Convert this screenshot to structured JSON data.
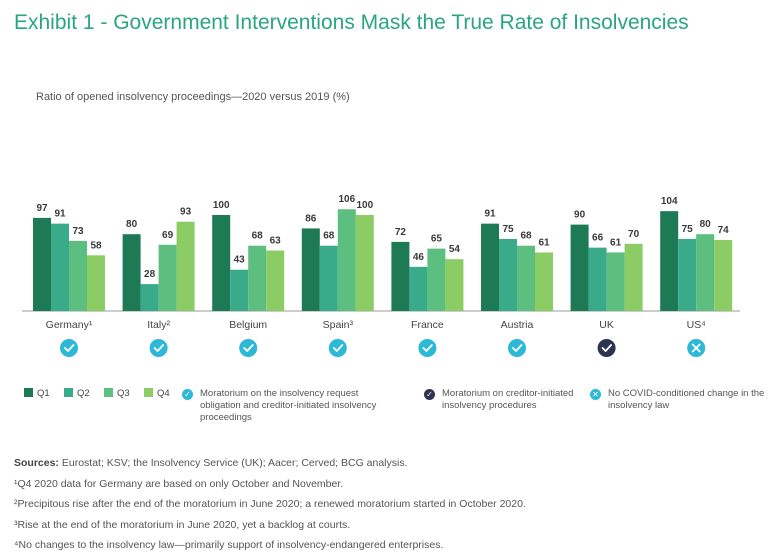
{
  "title": "Exhibit 1 - Government Interventions Mask the True Rate of Insolvencies",
  "subtitle": "Ratio of opened insolvency proceedings—2020 versus 2019 (%)",
  "colors": {
    "Q1": "#1e7a55",
    "Q2": "#3aab8a",
    "Q3": "#5cbf80",
    "Q4": "#8ccc64",
    "icon_light": "#2cb8d6",
    "icon_dark": "#2d3350",
    "title": "#2aa67c"
  },
  "chart_data": {
    "type": "bar",
    "title": "Ratio of opened insolvency proceedings—2020 versus 2019 (%)",
    "categories": [
      "Germany¹",
      "Italy²",
      "Belgium",
      "Spain³",
      "France",
      "Austria",
      "UK",
      "US⁴"
    ],
    "series": [
      {
        "name": "Q1",
        "values": [
          97,
          80,
          100,
          86,
          72,
          91,
          90,
          104
        ]
      },
      {
        "name": "Q2",
        "values": [
          91,
          28,
          43,
          68,
          46,
          75,
          66,
          75
        ]
      },
      {
        "name": "Q3",
        "values": [
          73,
          69,
          68,
          106,
          65,
          68,
          61,
          80
        ]
      },
      {
        "name": "Q4",
        "values": [
          58,
          93,
          63,
          100,
          54,
          61,
          70,
          74
        ]
      }
    ],
    "ylim": [
      0,
      110
    ],
    "xlabel": "",
    "ylabel": "",
    "status": [
      "check-light",
      "check-light",
      "check-light",
      "check-light",
      "check-light",
      "check-light",
      "check-dark",
      "cross-light"
    ]
  },
  "legend": {
    "q1": "Q1",
    "q2": "Q2",
    "q3": "Q3",
    "q4": "Q4",
    "moratorium_both": "Moratorium on the insolvency request obligation and creditor-initiated insolvency proceedings",
    "moratorium_creditor": "Moratorium on creditor-initiated insolvency procedures",
    "no_change": "No COVID-conditioned change in the insolvency law"
  },
  "notes": {
    "sources_label": "Sources:",
    "sources_text": " Eurostat; KSV; the Insolvency Service (UK); Aacer; Cerved; BCG analysis.",
    "note1": "¹Q4 2020 data for Germany are based on only October and November.",
    "note2": "²Precipitous rise after the end of the moratorium in June 2020; a renewed moratorium started in October 2020.",
    "note3": "³Rise at the end of the moratorium in June 2020, yet a backlog at courts.",
    "note4": "⁴No changes to the insolvency law—primarily support of insolvency-endangered enterprises."
  }
}
